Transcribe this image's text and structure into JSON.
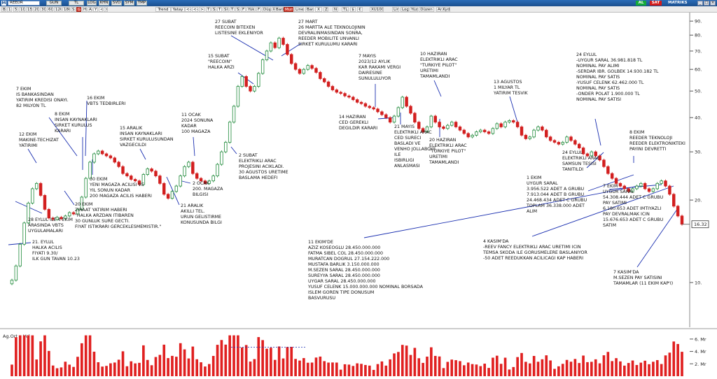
{
  "titlebar": {
    "symbol": "REEDR",
    "tabs": [
      "GUN",
      "TL",
      "LOG",
      "KHN",
      "SVD",
      "SYM",
      "TMP"
    ],
    "buy_label": "AL",
    "sell_label": "SAT",
    "brand": "MATRIKS"
  },
  "toolbar": {
    "items": [
      "B",
      "1",
      "5",
      "10",
      "15",
      "20",
      "30",
      "60",
      "120",
      "180",
      "S",
      "G",
      "H",
      "A",
      "Y",
      "<",
      ">",
      "Trend",
      "Yatay",
      "<<",
      "<<",
      ">",
      "T",
      "S",
      "T",
      "SI",
      "T",
      "S",
      "F",
      "Yük",
      "F",
      "Düş",
      "Param",
      "Bar",
      "Mum",
      "Line",
      "Bar",
      "X",
      "Z",
      "N",
      "TL",
      "$",
      "€",
      "XU100",
      "Lin",
      "Log",
      "Yüz",
      "Düzen",
      "Ar.Kyd"
    ],
    "active_index": 11,
    "active_index2": 34
  },
  "colors": {
    "up": "#1f8a3a",
    "down": "#d21f1f",
    "volume": "#e02020",
    "price_line": "#1f8a3a",
    "annotation_line": "#1a2fb0",
    "last_price_bg": "#ffffff"
  },
  "chart_data": {
    "type": "candlestick",
    "title": "",
    "scale": "log",
    "y_ticks": [
      10,
      20,
      30,
      40,
      50,
      60,
      70,
      80,
      90
    ],
    "y_tick_labels": [
      "10.",
      "20.",
      "30.",
      "40.",
      "50.",
      "60.",
      "70.",
      "80.",
      "90."
    ],
    "ylim": [
      7.5,
      95
    ],
    "last_price": "16.32",
    "price_path": [
      10.2,
      11.5,
      13.8,
      16.5,
      19.5,
      22.0,
      23.0,
      20.8,
      18.5,
      17.2,
      17.0,
      17.3,
      17.1,
      17.5,
      18.0,
      17.8,
      18.5,
      20.5,
      24.0,
      27.5,
      29.5,
      30.2,
      29.5,
      29.0,
      28.5,
      27.5,
      26.5,
      25.0,
      24.5,
      23.8,
      23.5,
      22.8,
      24.8,
      26.0,
      25.5,
      24.5,
      23.0,
      21.0,
      20.3,
      21.5,
      22.5,
      24.5,
      26.5,
      27.5,
      25.0,
      24.0,
      23.5,
      23.0,
      23.5,
      24.5,
      27.0,
      30.0,
      32.5,
      38.5,
      44.0,
      52.0,
      56.5,
      52.0,
      50.0,
      52.0,
      58.0,
      65.0,
      70.0,
      75.0,
      72.0,
      78.0,
      74.0,
      68.0,
      63.0,
      60.0,
      58.0,
      60.0,
      62.0,
      60.5,
      58.5,
      55.5,
      54.0,
      52.0,
      50.5,
      49.5,
      49.0,
      48.0,
      47.5,
      46.5,
      45.5,
      45.0,
      44.0,
      43.5,
      43.0,
      42.0,
      41.0,
      40.0,
      38.5,
      40.5,
      43.5,
      47.5,
      44.0,
      41.5,
      38.5,
      36.5,
      35.5,
      37.0,
      40.5,
      38.5,
      37.0,
      36.5,
      37.5,
      38.5,
      37.0,
      36.0,
      35.0,
      34.0,
      34.5,
      35.5,
      36.0,
      35.5,
      35.0,
      36.5,
      38.0,
      37.0,
      38.5,
      39.0,
      38.5,
      37.0,
      34.5,
      33.5,
      34.0,
      36.0,
      37.0,
      36.0,
      34.0,
      33.0,
      32.5,
      32.0,
      32.5,
      34.0,
      33.0,
      32.0,
      31.0,
      29.5,
      29.0,
      30.0,
      29.0,
      28.0,
      26.5,
      25.0,
      24.0,
      23.0,
      22.5,
      22.0,
      21.5,
      22.0,
      22.5,
      23.0,
      22.0,
      21.5,
      22.0,
      23.0,
      23.5,
      22.5,
      21.0,
      19.0,
      17.5,
      16.32
    ],
    "volume_ticks": [
      "6. Mr",
      "4. Mr",
      "2. Mr"
    ],
    "volume_tick_values": [
      6,
      4,
      2
    ],
    "volume_max": 7,
    "subchart_label": "Ag.Ort x Vol",
    "annotations": [
      {
        "lines": [
          "27 SUBAT",
          "REECOIN BITEXEN",
          "LISTESINE EKLENIYOR"
        ]
      },
      {
        "lines": [
          "27 MART",
          "26 MARTTA ALE TEKNOLOJININ",
          "DEVRALINMASINDAN SONRA,",
          "REEDER MOBILITE UNVANLI",
          "SIRKET KURULUMU KARARI"
        ]
      },
      {
        "lines": [
          "15 SUBAT",
          "\"REECOIN\"",
          "HALKA ARZI"
        ]
      },
      {
        "lines": [
          "7 MAYIS",
          "2023/12 AYLIK",
          "KAR RAKAMI VERGI",
          "DAIRESINE",
          "SUNULULUYOR"
        ]
      },
      {
        "lines": [
          "10 HAZIRAN",
          "ELEKTRIKLI ARAC",
          "\"TURKIYE PILOT\"",
          "URETIMI",
          "TAMAMLANDI"
        ]
      },
      {
        "lines": [
          "24 EYLUL",
          "-UYGUR SARAL 36.981.818 TL",
          "NOMINAL PAY ALIMI",
          "-SERDAR IBR. GOLBEK 14.930.182 TL",
          "NOMINAL PAY SATIS",
          "-YUSUF CELENK 62.462.000 TL",
          "NOMINAL PAY SATIS",
          "-ONDER POLAT 1.900.000 TL",
          "NOMINAL PAY SATISI"
        ]
      },
      {
        "lines": [
          "7 EKIM",
          "IS BANKASINDAN",
          "YATIRIM KREDISI ONAYI.",
          " 82 MILYON TL"
        ]
      },
      {
        "lines": [
          "16 EKIM",
          "VBTS TEDBIRLERI"
        ]
      },
      {
        "lines": [
          "8 EKIM",
          "INSAN KAYNAKLARI",
          "SIRKET KURULUS",
          "KARARI"
        ]
      },
      {
        "lines": [
          "13 AGUSTOS",
          "1 MILYAR TL",
          "YATIRIM TESVIK"
        ]
      },
      {
        "lines": [
          "11 OCAK",
          "2024 SONUNA",
          "KADAR",
          "100 MAGAZA"
        ]
      },
      {
        "lines": [
          "14 HAZIRAN",
          "CED GEREKLI",
          "DEGILDIR KARARI"
        ]
      },
      {
        "lines": [
          "12 EKIM",
          "MAKINE-TECHIZAT",
          "YATIRIMI"
        ]
      },
      {
        "lines": [
          "15 ARALIK",
          "INSAN KAYNAKLARI",
          "SIRKET KURULUSUNDAN",
          "VAZGECILDI"
        ]
      },
      {
        "lines": [
          "21 MAYIS",
          "ELEKTRIKLI ARAC",
          "CED SURECI",
          "BASLADI VE",
          "VENHO JOLLABOYS",
          "ILE",
          "ISBIRLIGI",
          "ANLASMASI"
        ]
      },
      {
        "lines": [
          "20 HAZIRAN",
          "ELEKTRIKLI ARAC",
          "\"TURKIYE PILOT\"",
          "URETIMI",
          "TAMAMLANDI"
        ]
      },
      {
        "lines": [
          "8 EKIM",
          "REEDER TEKNOLOJI",
          "REEDER ELEKTRONIKTEKI",
          "PAYINI DEVRETTI"
        ]
      },
      {
        "lines": [
          "2 SUBAT",
          "ELEKTRIKLI ARAC",
          "PROJESINI ACIKLADI.",
          "30 AGUSTOS URETIME",
          "BASLAMA HEDEFI"
        ]
      },
      {
        "lines": [
          "24 EYLUL",
          "ELEKTRIKLI ARAC",
          "SAMSUN TESISI",
          "TANITILDI"
        ]
      },
      {
        "lines": [
          "30 EKIM",
          "YENI MAGAZA ACILISI VE",
          "  YIL SONUN KADAR",
          "200 MAGAZA ACILIS HABERI"
        ]
      },
      {
        "lines": [
          "2 OCAK",
          "200. MAGAZA",
          "BILGISI"
        ]
      },
      {
        "lines": [
          "1 EKIM",
          "UYGUR SARAL",
          "3.956.522 ADET A GRUBU",
          "7.913.044 ADET B GRUBU",
          "24.468.434 ADET C GRUBU",
          "TOPLAM 36.338.000 ADET",
          "ALIM"
        ]
      },
      {
        "lines": [
          "7 EKIM",
          "UYGUR SARAL",
          "54.308.444 ADET C GRUBU",
          "PAY SATIMI",
          "6.180.653 ADET IMTIYAZLI",
          "PAY DEVRALMAK ICIN",
          "15.676.653 ADET C GRUBU",
          "SATIM"
        ]
      },
      {
        "lines": [
          "21 ARALIK",
          "AKILLI TEL.",
          "URUN GELISTIRME",
          " KONUSUNDA BILGI"
        ]
      },
      {
        "lines": [
          "20 EKIM",
          "ZIRAAT YATIRIM HABERI",
          "\"HALKA ARZDAN ITIBAREN",
          "30 GUNLUK SURE GECTI.",
          "FIYAT ISTIKRARI GERCEKLESMEMISTIR.\""
        ]
      },
      {
        "lines": [
          "28 EYLUL ILE 4 EKIM",
          "ARASINDA VBTS",
          "UYGULAMALARI"
        ]
      },
      {
        "lines": [
          "21. EYLUL",
          "HALKA ACILIS",
          "FIYATI 9.30/",
          "ILK GUN TAVAN 10.23"
        ]
      },
      {
        "lines": [
          "11 EKIM'DE",
          "AZIZ KOSEOGLU 28.450.000.000",
          "FATMA SIBEL COL 28.450.000.000",
          "MURATCAN DOGRUL 27.154.222.000",
          "MUSTAFA BARLIK 3.150.000.000",
          "M.SEZEN SARAL 28.450.000.000",
          "SUREYYA SARAL 28.450.000.000",
          "UYGAR SARAL 28.450.000.000",
          "YUSUF CELENK 15.000.000.000 NOMINAL BORSADA",
          "ISLEM GOREN TIPE DONUSUM",
          "BASVURUSU"
        ]
      },
      {
        "lines": [
          "4 KASIM'DA",
          "-REEV FANCY ELEKTRIKLI ARAC URETIMI ICIN",
          "TEMSA SKODA ILE GORUSMELERE BASLANIYOR",
          "-50 ADET REEDUKKAN ACILICAGI KAP HABERI"
        ]
      },
      {
        "lines": [
          "7 KASIM'DA",
          "M.SEZEN PAY SATISINI",
          "TAMAMLAR (11 EKIM KAP'I)"
        ]
      }
    ]
  }
}
